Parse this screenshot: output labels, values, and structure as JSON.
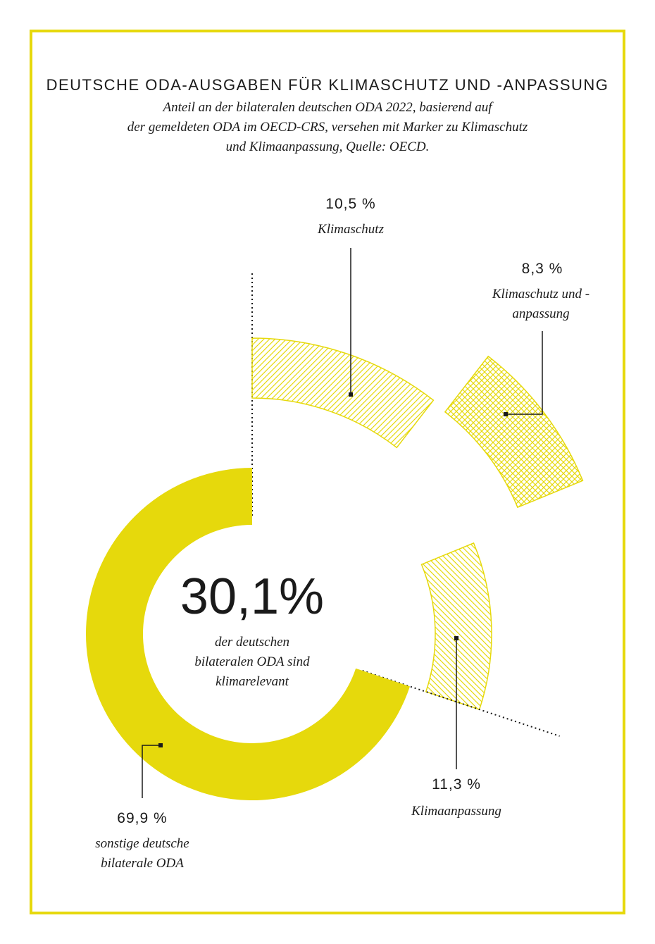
{
  "chart_data": {
    "type": "donut",
    "title": "DEUTSCHE ODA-AUSGABEN FÜR KLIMASCHUTZ UND -ANPASSUNG",
    "subtitle": [
      "Anteil an der bilateralen deutschen ODA 2022, basierend auf",
      "der gemeldeten ODA im OECD-CRS, versehen mit Marker zu Klimaschutz",
      "und Klimaanpassung, Quelle: OECD."
    ],
    "categories": [
      "Klimaschutz",
      "Klimaschutz und -anpassung",
      "Klimaanpassung",
      "sonstige deutsche bilaterale ODA"
    ],
    "values": [
      10.5,
      8.3,
      11.3,
      69.9
    ],
    "value_labels": [
      "10,5 %",
      "8,3 %",
      "11,3 %",
      "69,9 %"
    ],
    "colors": [
      "#e6d90c",
      "#e6d90c",
      "#e6d90c",
      "#e6d90c"
    ],
    "center_value": {
      "value": 30.1,
      "label": "30,1%"
    },
    "center_text": "der deutschen bilateralen ODA sind klimarelevant"
  }
}
